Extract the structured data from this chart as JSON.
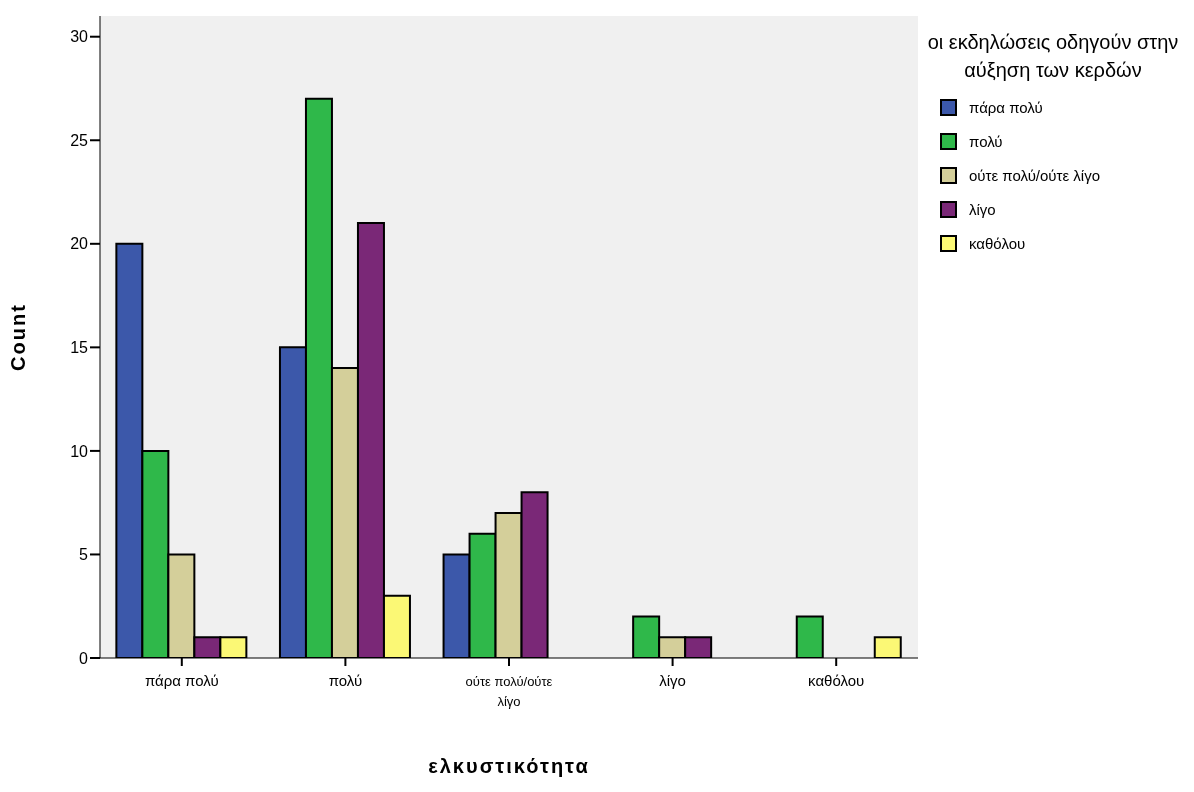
{
  "chart_data": {
    "type": "bar",
    "xlabel": "ελκυστικότητα",
    "ylabel": "Count",
    "legend_title": "οι εκδηλώσεις οδηγούν στην αύξηση των κερδών",
    "categories": [
      "πάρα πολύ",
      "πολύ",
      "ούτε πολύ/ούτε λίγο",
      "λίγο",
      "καθόλου"
    ],
    "series": [
      {
        "name": "πάρα πολύ",
        "color": "#3c58aa",
        "values": [
          20,
          15,
          5,
          null,
          null
        ]
      },
      {
        "name": "πολύ",
        "color": "#2fb84a",
        "values": [
          10,
          27,
          6,
          2,
          2
        ]
      },
      {
        "name": "ούτε πολύ/ούτε λίγο",
        "color": "#d4cf9a",
        "values": [
          5,
          14,
          7,
          1,
          null
        ]
      },
      {
        "name": "λίγο",
        "color": "#7a2877",
        "values": [
          1,
          21,
          8,
          1,
          null
        ]
      },
      {
        "name": "καθόλου",
        "color": "#fbf875",
        "values": [
          1,
          3,
          null,
          null,
          1
        ]
      }
    ],
    "ylim": [
      0,
      31
    ],
    "yticks": [
      0,
      5,
      10,
      15,
      20,
      25,
      30
    ],
    "grid": false,
    "legend": "top right"
  }
}
